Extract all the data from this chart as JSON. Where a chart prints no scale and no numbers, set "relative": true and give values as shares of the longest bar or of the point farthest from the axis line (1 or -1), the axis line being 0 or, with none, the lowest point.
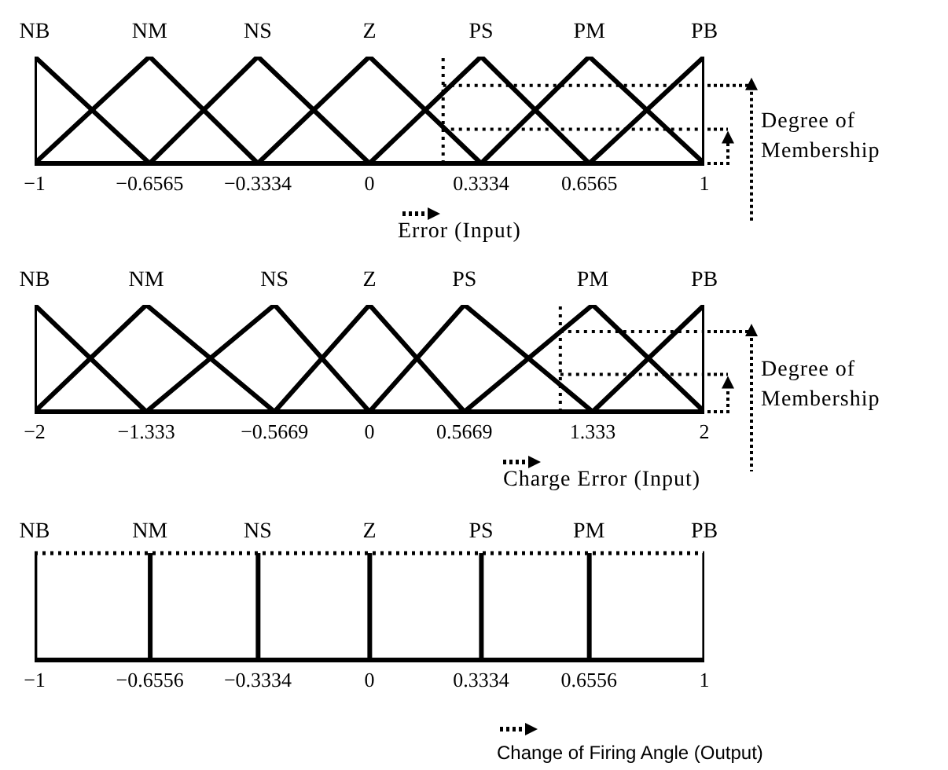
{
  "chart_data": [
    {
      "type": "line",
      "xlabel": "Error (Input)",
      "annotations": [
        "Degree of Membership"
      ],
      "relative": true,
      "xlim": [
        -1,
        1
      ],
      "ref_lines": [
        {
          "axis": "x",
          "value": 0.22,
          "line_style": "dotted",
          "color": "#000000"
        },
        {
          "axis": "y",
          "value": 0.73,
          "line_style": "dotted",
          "color": "#000000"
        },
        {
          "axis": "y",
          "value": 0.32,
          "line_style": "dotted",
          "color": "#000000"
        }
      ],
      "xticks": [
        {
          "value": -1,
          "label": "−1"
        },
        {
          "value": -0.6565,
          "label": "−0.6565"
        },
        {
          "value": -0.3334,
          "label": "−0.3334"
        },
        0,
        0.3334,
        0.6565,
        1
      ],
      "line_style": "solid",
      "marker": "none",
      "series": [
        {
          "name": "NB",
          "color": "#000000",
          "x": [
            -1,
            -1,
            -0.6565
          ],
          "values": [
            0,
            1,
            0
          ]
        },
        {
          "name": "NM",
          "color": "#000000",
          "x": [
            -1,
            -0.6565,
            -0.3334
          ],
          "values": [
            0,
            1,
            0
          ]
        },
        {
          "name": "NS",
          "color": "#000000",
          "x": [
            -0.6565,
            -0.3334,
            0
          ],
          "values": [
            0,
            1,
            0
          ]
        },
        {
          "name": "Z",
          "color": "#000000",
          "x": [
            -0.3334,
            0,
            0.3334
          ],
          "values": [
            0,
            1,
            0
          ]
        },
        {
          "name": "PS",
          "color": "#000000",
          "x": [
            0,
            0.3334,
            0.6565
          ],
          "values": [
            0,
            1,
            0
          ]
        },
        {
          "name": "PM",
          "color": "#000000",
          "x": [
            0.3334,
            0.6565,
            1
          ],
          "values": [
            0,
            1,
            0
          ]
        },
        {
          "name": "PB",
          "color": "#000000",
          "x": [
            0.6565,
            1,
            1
          ],
          "values": [
            0,
            1,
            0
          ]
        }
      ]
    },
    {
      "type": "line",
      "xlabel": "Charge Error (Input)",
      "annotations": [
        "Degree of Membership"
      ],
      "relative": true,
      "xlim": [
        -2,
        2
      ],
      "ref_lines": [
        {
          "axis": "x",
          "value": 1.14,
          "line_style": "dotted",
          "color": "#000000"
        },
        {
          "axis": "y",
          "value": 0.75,
          "line_style": "dotted",
          "color": "#000000"
        },
        {
          "axis": "y",
          "value": 0.35,
          "line_style": "dotted",
          "color": "#000000"
        }
      ],
      "xticks": [
        {
          "value": -2,
          "label": "−2"
        },
        {
          "value": -1.333,
          "label": "−1.333"
        },
        {
          "value": -0.5669,
          "label": "−0.5669"
        },
        0,
        0.5669,
        1.333,
        2
      ],
      "line_style": "solid",
      "marker": "none",
      "series": [
        {
          "name": "NB",
          "color": "#000000",
          "x": [
            -2,
            -2,
            -1.333
          ],
          "values": [
            0,
            1,
            0
          ]
        },
        {
          "name": "NM",
          "color": "#000000",
          "x": [
            -2,
            -1.333,
            -0.5669
          ],
          "values": [
            0,
            1,
            0
          ]
        },
        {
          "name": "NS",
          "color": "#000000",
          "x": [
            -1.333,
            -0.5669,
            0
          ],
          "values": [
            0,
            1,
            0
          ]
        },
        {
          "name": "Z",
          "color": "#000000",
          "x": [
            -0.5669,
            0,
            0.5669
          ],
          "values": [
            0,
            1,
            0
          ]
        },
        {
          "name": "PS",
          "color": "#000000",
          "x": [
            0,
            0.5669,
            1.333
          ],
          "values": [
            0,
            1,
            0
          ]
        },
        {
          "name": "PM",
          "color": "#000000",
          "x": [
            0.5669,
            1.333,
            2
          ],
          "values": [
            0,
            1,
            0
          ]
        },
        {
          "name": "PB",
          "color": "#000000",
          "x": [
            1.333,
            2,
            2
          ],
          "values": [
            0,
            1,
            0
          ]
        }
      ]
    },
    {
      "type": "bar",
      "xlabel": "Change of Firing Angle (Output)",
      "relative": true,
      "xlim": [
        -1,
        1
      ],
      "xticks": [
        {
          "value": -1,
          "label": "−1"
        },
        {
          "value": -0.6556,
          "label": "−0.6556"
        },
        {
          "value": -0.3334,
          "label": "−0.3334"
        },
        0,
        0.3334,
        0.6556,
        1
      ],
      "annotations": [
        {
          "text": "NB",
          "x": -1,
          "y": 1
        },
        {
          "text": "NM",
          "x": -0.6556,
          "y": 1
        },
        {
          "text": "NS",
          "x": -0.3334,
          "y": 1
        },
        {
          "text": "Z",
          "x": 0,
          "y": 1
        },
        {
          "text": "PS",
          "x": 0.3334,
          "y": 1
        },
        {
          "text": "PM",
          "x": 0.6556,
          "y": 1
        },
        {
          "text": "PB",
          "x": 1,
          "y": 1
        }
      ],
      "ref_lines": [
        {
          "axis": "y",
          "value": 1,
          "line_style": "dotted",
          "color": "#000000"
        }
      ],
      "series": [
        {
          "color": "#000000",
          "x": [
            -1,
            -0.6556,
            -0.3334,
            0,
            0.3334,
            0.6556,
            1
          ],
          "values": [
            1,
            1,
            1,
            1,
            1,
            1,
            1
          ]
        }
      ]
    }
  ]
}
